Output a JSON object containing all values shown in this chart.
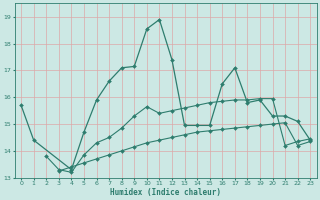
{
  "xlabel": "Humidex (Indice chaleur)",
  "background_color": "#cce8e4",
  "grid_color": "#dda8a8",
  "line_color": "#2e7d6e",
  "ylim": [
    13,
    19.5
  ],
  "xlim": [
    -0.5,
    23.5
  ],
  "yticks": [
    13,
    14,
    15,
    16,
    17,
    18,
    19
  ],
  "xticks": [
    0,
    1,
    2,
    3,
    4,
    5,
    6,
    7,
    8,
    9,
    10,
    11,
    12,
    13,
    14,
    15,
    16,
    17,
    18,
    19,
    20,
    21,
    22,
    23
  ],
  "curve_main_x": [
    0,
    1,
    4,
    5,
    6,
    7,
    8,
    9,
    10,
    11,
    12,
    13,
    14,
    15,
    16,
    17,
    18,
    19,
    20,
    21,
    22,
    23
  ],
  "curve_main_y": [
    15.7,
    14.4,
    13.3,
    14.7,
    15.9,
    16.6,
    17.1,
    17.15,
    18.55,
    18.9,
    17.4,
    14.95,
    14.95,
    14.95,
    16.5,
    17.1,
    15.8,
    15.9,
    15.3,
    15.3,
    15.1,
    14.4
  ],
  "curve_mid_x": [
    2,
    3,
    4,
    5,
    6,
    7,
    8,
    9,
    10,
    11,
    12,
    13,
    14,
    15,
    16,
    17,
    18,
    19,
    20,
    21,
    22,
    23
  ],
  "curve_mid_y": [
    13.8,
    13.3,
    13.2,
    13.85,
    14.3,
    14.5,
    14.85,
    15.3,
    15.65,
    15.4,
    15.5,
    15.6,
    15.7,
    15.8,
    15.85,
    15.9,
    15.9,
    15.95,
    15.95,
    14.2,
    14.35,
    14.45
  ],
  "curve_low_x": [
    3,
    4,
    5,
    6,
    7,
    8,
    9,
    10,
    11,
    12,
    13,
    14,
    15,
    16,
    17,
    18,
    19,
    20,
    21,
    22,
    23
  ],
  "curve_low_y": [
    13.25,
    13.4,
    13.55,
    13.7,
    13.85,
    14.0,
    14.15,
    14.3,
    14.4,
    14.5,
    14.6,
    14.7,
    14.75,
    14.8,
    14.85,
    14.9,
    14.95,
    15.0,
    15.05,
    14.2,
    14.35
  ]
}
